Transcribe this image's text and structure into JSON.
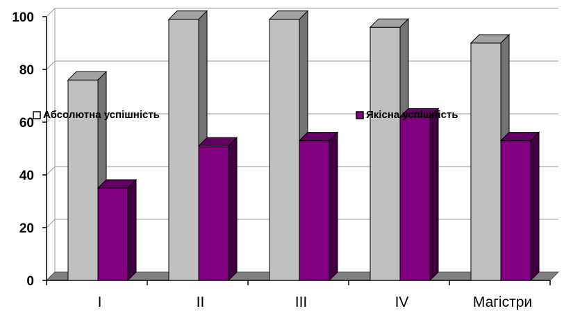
{
  "chart_data": {
    "type": "bar",
    "title": "",
    "xlabel": "",
    "ylabel": "",
    "ylim": [
      0,
      100
    ],
    "yticks": [
      "0",
      "20",
      "40",
      "60",
      "80",
      "100"
    ],
    "categories": [
      "I",
      "II",
      "III",
      "IV",
      "Магістри"
    ],
    "series": [
      {
        "name": "Абсолютна успішність",
        "values": [
          76,
          99,
          99,
          96,
          90
        ],
        "color": "#c0c0c0"
      },
      {
        "name": "Якісна успішність",
        "values": [
          35,
          51,
          53,
          62,
          53
        ],
        "color": "#800080"
      }
    ],
    "grid": true,
    "legend": "inside-middle",
    "style": "3d-column"
  }
}
